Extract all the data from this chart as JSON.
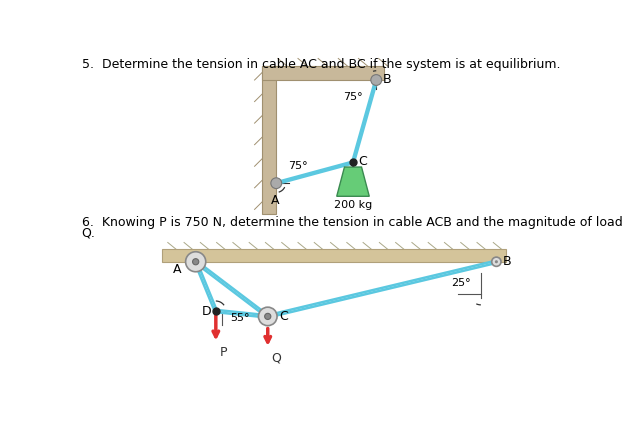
{
  "title5": "5.  Determine the tension in cable AC and BC if the system is at equilibrium.",
  "title6": "6.  Knowing P is 750 N, determine the tension in cable ACB and the magnitude of load",
  "title6b": "Q.",
  "bg_color": "#ffffff",
  "wall_color": "#c8b89a",
  "wall_edge": "#a09070",
  "cable_color": "#5bc8e0",
  "weight_color": "#66cc77",
  "weight_edge": "#3a8a50",
  "arrow_color": "#e03030",
  "beam_color": "#d4c49a",
  "beam_edge": "#b0a07a",
  "pin_color": "#aaaaaa",
  "pulley_outer": "#bbbbbb",
  "pulley_inner": "#888888",
  "dot_color": "#222222",
  "angle_label5_B": "75°",
  "angle_label5_A": "75°",
  "weight_label": "200 kg",
  "label_A5": "A",
  "label_B5": "B",
  "label_C5": "C",
  "label_A6": "A",
  "label_B6": "B",
  "label_C6": "C",
  "label_D6": "D",
  "label_P6": "P",
  "label_Q6": "Q",
  "angle_label6_D": "55°",
  "angle_label6_B": "25°"
}
